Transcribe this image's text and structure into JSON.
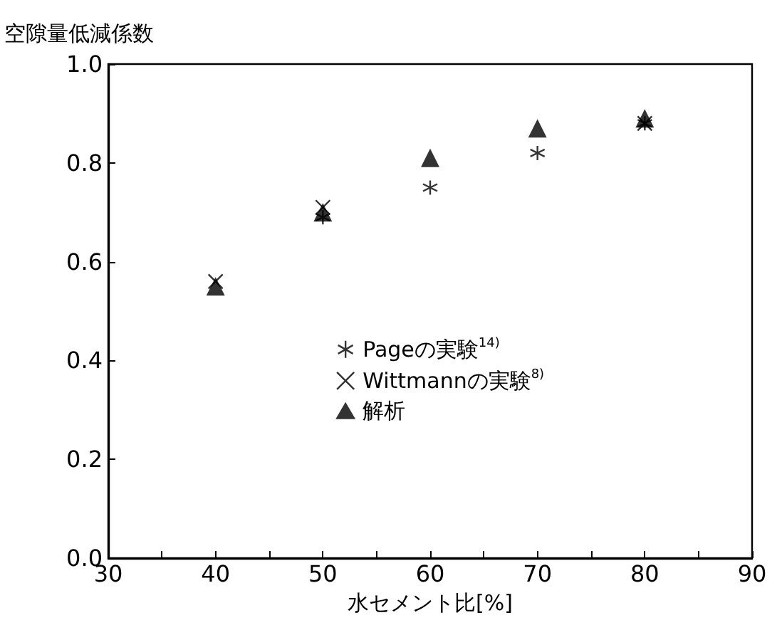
{
  "chart_data": {
    "type": "scatter",
    "ylabel": "空隙量低減係数",
    "xlabel": "水セメント比[%]",
    "xlim": [
      30,
      90
    ],
    "xticks": [
      30,
      {
        "value": 35,
        "label": null
      },
      40,
      {
        "value": 45,
        "label": null
      },
      50,
      {
        "value": 55,
        "label": null
      },
      60,
      {
        "value": 65,
        "label": null
      },
      70,
      {
        "value": 75,
        "label": null
      },
      80,
      {
        "value": 85,
        "label": null
      },
      90
    ],
    "ylim": [
      0,
      1
    ],
    "yticks": [
      {
        "value": 0,
        "label": "0.0"
      },
      0.2,
      0.4,
      0.6,
      0.8,
      {
        "value": 1,
        "label": "1.0"
      }
    ],
    "grid": false,
    "legend": "center",
    "series": [
      {
        "name": "Pageの実験$^{14)}$",
        "color": "#000000",
        "x": [
          50,
          60,
          70,
          80
        ],
        "values": [
          0.69,
          0.75,
          0.82,
          0.88
        ]
      },
      {
        "name": "Wittmannの実験$^{8)}$",
        "color": "#000000",
        "marker": "cross",
        "x": [
          40,
          50,
          80
        ],
        "values": [
          0.56,
          0.71,
          0.88
        ]
      },
      {
        "name": "解析",
        "color": "#000000",
        "marker": "triangle",
        "x": [
          40,
          50,
          60,
          70,
          80
        ],
        "values": [
          0.55,
          0.7,
          0.81,
          0.87,
          0.89
        ]
      }
    ]
  }
}
